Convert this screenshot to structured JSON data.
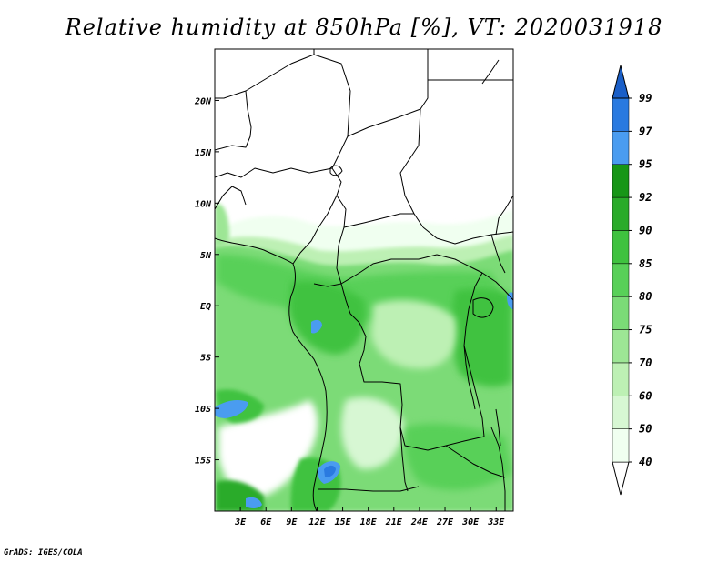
{
  "title": "Relative humidity at 850hPa [%], VT: 2020031918",
  "credit": "GrADS: IGES/COLA",
  "map": {
    "lon_range": [
      0,
      35
    ],
    "lat_range": [
      -20,
      25
    ],
    "x_ticks": [
      {
        "value": 3,
        "label": "3E"
      },
      {
        "value": 6,
        "label": "6E"
      },
      {
        "value": 9,
        "label": "9E"
      },
      {
        "value": 12,
        "label": "12E"
      },
      {
        "value": 15,
        "label": "15E"
      },
      {
        "value": 18,
        "label": "18E"
      },
      {
        "value": 21,
        "label": "21E"
      },
      {
        "value": 24,
        "label": "24E"
      },
      {
        "value": 27,
        "label": "27E"
      },
      {
        "value": 30,
        "label": "30E"
      },
      {
        "value": 33,
        "label": "33E"
      }
    ],
    "y_ticks": [
      {
        "value": 20,
        "label": "20N"
      },
      {
        "value": 15,
        "label": "15N"
      },
      {
        "value": 10,
        "label": "10N"
      },
      {
        "value": 5,
        "label": "5N"
      },
      {
        "value": 0,
        "label": "EQ"
      },
      {
        "value": -5,
        "label": "5S"
      },
      {
        "value": -10,
        "label": "10S"
      },
      {
        "value": -15,
        "label": "15S"
      }
    ]
  },
  "colorbar": {
    "levels": [
      "40",
      "50",
      "60",
      "70",
      "75",
      "80",
      "85",
      "90",
      "92",
      "95",
      "97",
      "99"
    ],
    "colors": [
      "#f0fff0",
      "#d7f7d3",
      "#bdf0b4",
      "#9de695",
      "#7bdb77",
      "#58d058",
      "#3fc23f",
      "#2aab2a",
      "#179617",
      "#4a9cf0",
      "#2a7ae0",
      "#1a5fc8"
    ]
  },
  "colors": {
    "rh_40": "#f0fff0",
    "rh_50": "#d7f7d3",
    "rh_60": "#bdf0b4",
    "rh_70": "#9de695",
    "rh_75": "#7bdb77",
    "rh_80": "#58d058",
    "rh_85": "#3fc23f",
    "rh_90": "#2aab2a",
    "rh_92": "#179617",
    "rh_95": "#4a9cf0",
    "rh_97": "#2a7ae0",
    "rh_99": "#1a5fc8"
  }
}
